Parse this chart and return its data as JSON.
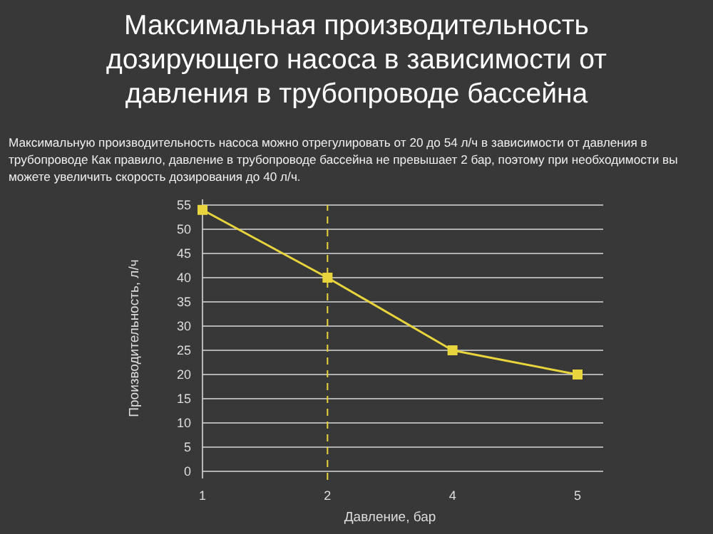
{
  "chart_data": {
    "type": "line",
    "title": "Максимальная производительность дозирующего насоса в зависимости от давления в трубопроводе бассейна",
    "subtitle": "Максимальную производительность насоса можно отрегулировать от 20 до 54 л/ч в зависимости от давления в трубопроводе Как правило, давление в трубопроводе бассейна не превышает 2 бар, поэтому при необходимости вы можете увеличить скорость дозирования до 40 л/ч.",
    "xlabel": "Давление, бар",
    "ylabel": "Производительность, л/ч",
    "categories": [
      "1",
      "2",
      "4",
      "5"
    ],
    "series": [
      {
        "color": "#e8d43c",
        "values": [
          54,
          40,
          25,
          20
        ]
      }
    ],
    "ylim": [
      0,
      55
    ],
    "yticks": [
      0,
      5,
      10,
      15,
      20,
      25,
      30,
      35,
      40,
      45,
      50,
      55
    ],
    "grid": "y",
    "marker": "square",
    "line_style": "solid",
    "ref_lines": [
      {
        "axis": "x",
        "value": "2",
        "color": "#e8d43c",
        "line_style": "dashed"
      }
    ]
  }
}
